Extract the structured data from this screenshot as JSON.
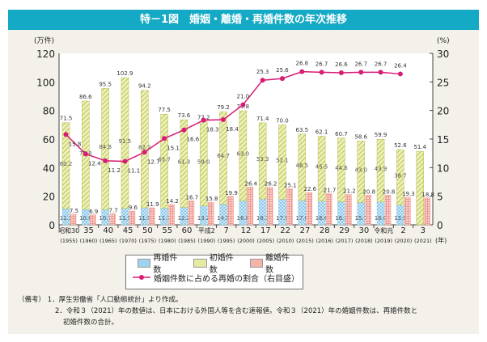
{
  "title": "特－1図　婚姻・離婚・再婚件数の年次推移",
  "colors": {
    "title_bar": "#14a9c4",
    "remarriage": "#9fd3ef",
    "first_marriage": "#e4eaa0",
    "divorce": "#f4b3ab",
    "ratio_line": "#d81b74"
  },
  "chart_data": {
    "type": "bar+line",
    "left_axis": {
      "unit": "(万件)",
      "range": [
        0,
        120
      ],
      "ticks": [
        0,
        20,
        40,
        60,
        80,
        100,
        120
      ]
    },
    "right_axis": {
      "unit": "(%)",
      "range": [
        0,
        30
      ],
      "ticks": [
        0,
        5,
        10,
        15,
        20,
        25,
        30
      ]
    },
    "x_unit": "(年)",
    "categories": [
      "昭和30",
      "35",
      "40",
      "45",
      "50",
      "55",
      "60",
      "平成2",
      "7",
      "12",
      "17",
      "22",
      "27",
      "28",
      "29",
      "30",
      "令和元",
      "2",
      "3"
    ],
    "categories_western": [
      "(1955)",
      "(1960)",
      "(1965)",
      "(1970)",
      "(1975)",
      "(1980)",
      "(1985)",
      "(1990)",
      "(1995)",
      "(2000)",
      "(2005)",
      "(2010)",
      "(2015)",
      "(2016)",
      "(2017)",
      "(2018)",
      "(2019)",
      "(2020)",
      "(2021)"
    ],
    "marriage_total": [
      71.5,
      86.6,
      95.5,
      102.9,
      94.2,
      77.5,
      73.6,
      72.2,
      79.2,
      79.8,
      71.4,
      70.0,
      63.5,
      62.1,
      60.7,
      58.6,
      59.9,
      52.6,
      51.4
    ],
    "series": [
      {
        "name": "再婚件数",
        "type": "stacked-bar",
        "values": [
          11.3,
          10.8,
          10.7,
          11.5,
          11.9,
          11.7,
          12.2,
          13.2,
          14.5,
          16.8,
          18.1,
          17.9,
          17.0,
          16.6,
          16.1,
          15.7,
          16.0,
          13.9,
          null
        ]
      },
      {
        "name": "初婚件数",
        "type": "stacked-bar",
        "values": [
          60.2,
          75.8,
          84.8,
          91.5,
          82.2,
          65.7,
          61.3,
          59.0,
          64.7,
          63.0,
          53.3,
          52.1,
          46.5,
          45.5,
          44.6,
          43.0,
          43.9,
          38.7,
          null
        ]
      },
      {
        "name": "離婚件数",
        "type": "bar",
        "values": [
          7.5,
          6.9,
          7.7,
          9.6,
          11.9,
          14.2,
          16.7,
          15.8,
          19.9,
          26.4,
          26.2,
          25.1,
          22.6,
          21.7,
          21.2,
          20.8,
          20.8,
          19.3,
          18.8
        ]
      },
      {
        "name": "婚姻件数に占める再婚の割合（右目盛）",
        "type": "line",
        "axis": "right",
        "values": [
          15.8,
          12.4,
          11.2,
          11.1,
          12.7,
          15.1,
          16.6,
          18.3,
          18.4,
          21.0,
          25.3,
          25.6,
          26.8,
          26.7,
          26.6,
          26.7,
          26.7,
          26.4,
          null
        ]
      }
    ],
    "legend": "bottom"
  },
  "notes": {
    "label": "（備考）",
    "items": [
      "1．厚生労働省「人口動態統計」より作成。",
      "2．令和３（2021）年の数値は、日本における外国人等を含む速報値。令和３（2021）年の婚姻件数は、再婚件数と",
      "初婚件数の合計。"
    ]
  }
}
